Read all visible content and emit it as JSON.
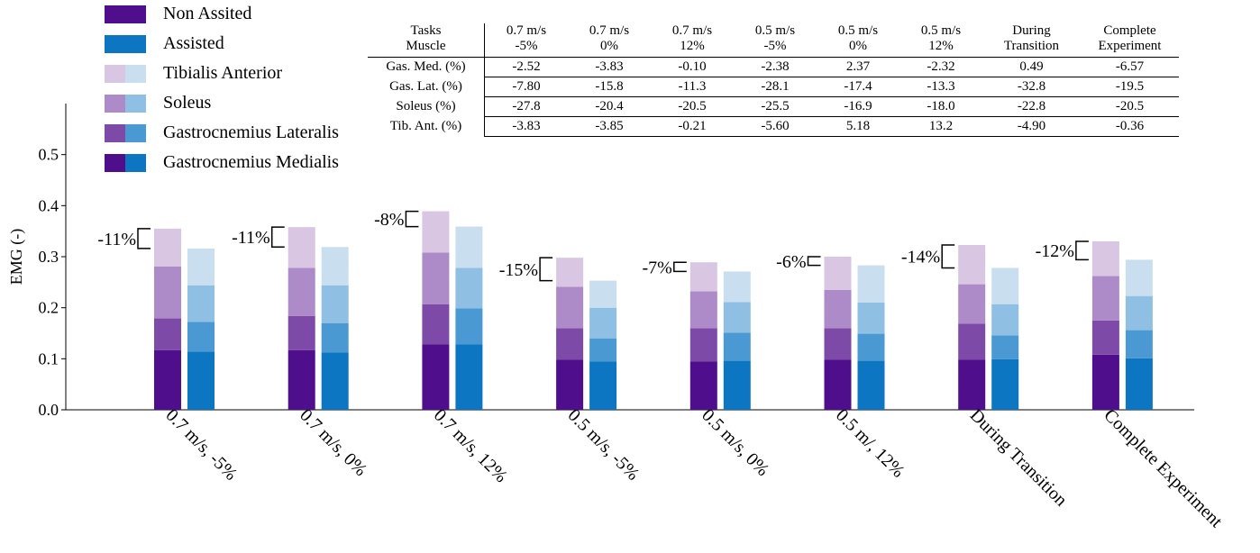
{
  "legend": {
    "non_assisted": "Non Assited",
    "assisted": "Assisted",
    "tibialis": "Tibialis Anterior",
    "soleus": "Soleus",
    "gas_lat": "Gastrocnemius Lateralis",
    "gas_med": "Gastrocnemius Medialis"
  },
  "colors": {
    "non_assisted": [
      "#4f0e8c",
      "#7d4aa8",
      "#ad8ac8",
      "#d9c6e3"
    ],
    "assisted": [
      "#0d76c2",
      "#4a99d2",
      "#8fbfe3",
      "#c9dfef"
    ]
  },
  "table": {
    "header_top_left": "Tasks",
    "header_bottom_left": "Muscle",
    "columns": [
      [
        "0.7 m/s",
        "-5%"
      ],
      [
        "0.7 m/s",
        "0%"
      ],
      [
        "0.7 m/s",
        "12%"
      ],
      [
        "0.5 m/s",
        "-5%"
      ],
      [
        "0.5 m/s",
        "0%"
      ],
      [
        "0.5 m/s",
        "12%"
      ],
      [
        "During",
        "Transition"
      ],
      [
        "Complete",
        "Experiment"
      ]
    ],
    "rows": [
      {
        "label": "Gas. Med. (%)",
        "values": [
          "-2.52",
          "-3.83",
          "-0.10",
          "-2.38",
          "2.37",
          "-2.32",
          "0.49",
          "-6.57"
        ]
      },
      {
        "label": "Gas. Lat. (%)",
        "values": [
          "-7.80",
          "-15.8",
          "-11.3",
          "-28.1",
          "-17.4",
          "-13.3",
          "-32.8",
          "-19.5"
        ]
      },
      {
        "label": "Soleus (%)",
        "values": [
          "-27.8",
          "-20.4",
          "-20.5",
          "-25.5",
          "-16.9",
          "-18.0",
          "-22.8",
          "-20.5"
        ]
      },
      {
        "label": "Tib. Ant. (%)",
        "values": [
          "-3.83",
          "-3.85",
          "-0.21",
          "-5.60",
          "5.18",
          "13.2",
          "-4.90",
          "-0.36"
        ]
      }
    ]
  },
  "chart_data": {
    "type": "bar",
    "stacked": true,
    "ylabel": "EMG (-)",
    "ylim": [
      0,
      0.6
    ],
    "yticks": [
      "0.0",
      "0.1",
      "0.2",
      "0.3",
      "0.4",
      "0.5"
    ],
    "categories": [
      "0.7 m/s, -5%",
      "0.7 m/s, 0%",
      "0.7 m/s, 12%",
      "0.5 m/s, -5%",
      "0.5 m/s, 0%",
      "0.5 m/, 12%",
      "During Transition",
      "Complete Experiment"
    ],
    "stack_order": [
      "Gastrocnemius Medialis",
      "Gastrocnemius Lateralis",
      "Soleus",
      "Tibialis Anterior"
    ],
    "non_assisted": [
      [
        0.117,
        0.062,
        0.102,
        0.074
      ],
      [
        0.117,
        0.067,
        0.094,
        0.08
      ],
      [
        0.128,
        0.079,
        0.101,
        0.081
      ],
      [
        0.098,
        0.062,
        0.081,
        0.057
      ],
      [
        0.095,
        0.065,
        0.072,
        0.057
      ],
      [
        0.098,
        0.062,
        0.075,
        0.065
      ],
      [
        0.098,
        0.071,
        0.077,
        0.077
      ],
      [
        0.108,
        0.067,
        0.087,
        0.068
      ]
    ],
    "assisted": [
      [
        0.114,
        0.058,
        0.072,
        0.072
      ],
      [
        0.112,
        0.058,
        0.074,
        0.075
      ],
      [
        0.128,
        0.071,
        0.079,
        0.081
      ],
      [
        0.095,
        0.045,
        0.06,
        0.053
      ],
      [
        0.096,
        0.055,
        0.06,
        0.06
      ],
      [
        0.096,
        0.053,
        0.061,
        0.073
      ],
      [
        0.099,
        0.047,
        0.061,
        0.071
      ],
      [
        0.101,
        0.055,
        0.067,
        0.071
      ]
    ],
    "annotations": [
      "-11%",
      "-11%",
      "-8%",
      "-15%",
      "-7%",
      "-6%",
      "-14%",
      "-12%"
    ]
  }
}
